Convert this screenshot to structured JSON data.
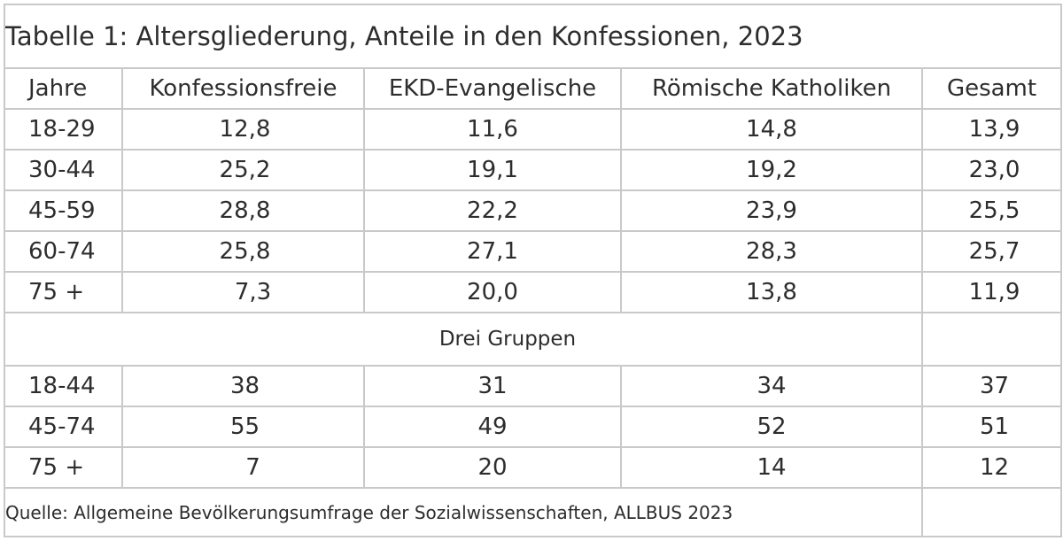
{
  "table": {
    "title": "Tabelle 1: Altersgliederung, Anteile in den Konfessionen, 2023",
    "headers": [
      "Jahre",
      "Konfessionsfreie",
      "EKD-Evangelische",
      "Römische Katholiken",
      "Gesamt"
    ],
    "rows": [
      [
        "18-29",
        "12,8",
        "11,6",
        "14,8",
        "13,9"
      ],
      [
        "30-44",
        "25,2",
        "19,1",
        "19,2",
        "23,0"
      ],
      [
        "45-59",
        "28,8",
        "22,2",
        "23,9",
        "25,5"
      ],
      [
        "60-74",
        "25,8",
        "27,1",
        "28,3",
        "25,7"
      ],
      [
        "75 +",
        "7,3",
        "20,0",
        "13,8",
        "11,9"
      ]
    ],
    "group_label": "Drei Gruppen",
    "group_rows": [
      [
        "18-44",
        "38",
        "31",
        "34",
        "37"
      ],
      [
        "45-74",
        "55",
        "49",
        "52",
        "51"
      ],
      [
        "75 +",
        "7",
        "20",
        "14",
        "12"
      ]
    ],
    "source": "Quelle: Allgemeine Bevölkerungsumfrage der Sozialwissenschaften, ALLBUS 2023"
  }
}
